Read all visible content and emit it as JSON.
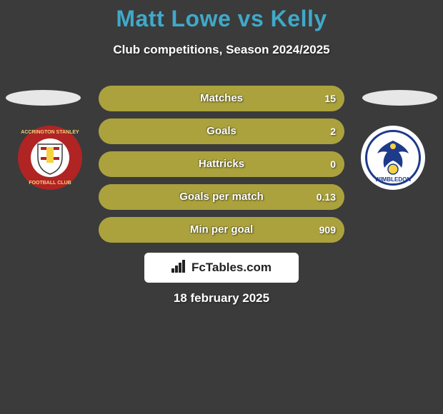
{
  "background_color": "#3b3b3b",
  "title": {
    "text": "Matt Lowe vs Kelly",
    "color": "#3fa9c9",
    "fontsize": 32
  },
  "subtitle": "Club competitions, Season 2024/2025",
  "stats": {
    "track_color": "#6e6e6e",
    "fill_color": "#aba23d",
    "rows": [
      {
        "label": "Matches",
        "left": "",
        "right": "15",
        "fill_pct": 100
      },
      {
        "label": "Goals",
        "left": "",
        "right": "2",
        "fill_pct": 100
      },
      {
        "label": "Hattricks",
        "left": "",
        "right": "0",
        "fill_pct": 100
      },
      {
        "label": "Goals per match",
        "left": "",
        "right": "0.13",
        "fill_pct": 100
      },
      {
        "label": "Min per goal",
        "left": "",
        "right": "909",
        "fill_pct": 100
      }
    ]
  },
  "ovals": {
    "left_color": "#e7e7e7",
    "right_color": "#e7e7e7"
  },
  "club_left": {
    "outer_color": "#b02424",
    "inner_color": "#ffffff",
    "top_text": "ACCRINGTON STANLEY",
    "bottom_text": "FOOTBALL CLUB",
    "text_color": "#f2d07a"
  },
  "club_right": {
    "outer_color": "#ffffff",
    "mid_color": "#1e3a8a",
    "inner_color": "#f5d342",
    "text": "WIMBLEDON",
    "text_color": "#1e3a8a"
  },
  "fctables": {
    "bg": "#ffffff",
    "color": "#222222",
    "label": "FcTables.com"
  },
  "date": "18 february 2025"
}
